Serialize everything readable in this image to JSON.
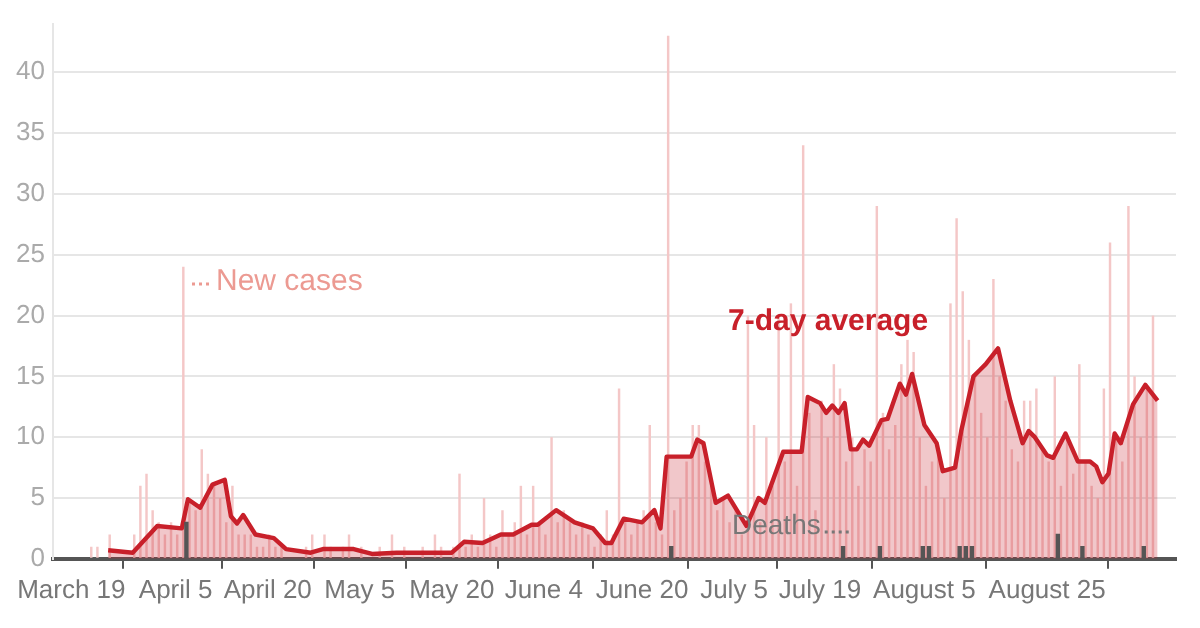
{
  "chart_data": {
    "type": "bar",
    "x": [
      "--03-22",
      "--03-23",
      "--03-24",
      "--03-25",
      "--03-26",
      "--03-27",
      "--03-28",
      "--03-29",
      "--03-30",
      "--03-31",
      "--04-01",
      "--04-02",
      "--04-03",
      "--04-04",
      "--04-05",
      "--04-06",
      "--04-07",
      "--04-08",
      "--04-09",
      "--04-10",
      "--04-11",
      "--04-12",
      "--04-13",
      "--04-14",
      "--04-15",
      "--04-16",
      "--04-17",
      "--04-18",
      "--04-19",
      "--04-20",
      "--04-21",
      "--04-22",
      "--04-23",
      "--04-24",
      "--04-25",
      "--04-26",
      "--04-27",
      "--04-28",
      "--04-29",
      "--04-30",
      "--05-01",
      "--05-02",
      "--05-03",
      "--05-04",
      "--05-05",
      "--05-06",
      "--05-07",
      "--05-08",
      "--05-09",
      "--05-10",
      "--05-11",
      "--05-12",
      "--05-13",
      "--05-14",
      "--05-15",
      "--05-16",
      "--05-17",
      "--05-18",
      "--05-19",
      "--05-20",
      "--05-21",
      "--05-22",
      "--05-23",
      "--05-24",
      "--05-25",
      "--05-26",
      "--05-27",
      "--05-28",
      "--05-29",
      "--05-30",
      "--05-31",
      "--06-01",
      "--06-02",
      "--06-03",
      "--06-04",
      "--06-05",
      "--06-06",
      "--06-07",
      "--06-08",
      "--06-09",
      "--06-10",
      "--06-11",
      "--06-12",
      "--06-13",
      "--06-14",
      "--06-15",
      "--06-16",
      "--06-17",
      "--06-18",
      "--06-19",
      "--06-20",
      "--06-21",
      "--06-22",
      "--06-23",
      "--06-24",
      "--06-25",
      "--06-26",
      "--06-27",
      "--06-28",
      "--06-29",
      "--06-30",
      "--07-01",
      "--07-02",
      "--07-03",
      "--07-04",
      "--07-05",
      "--07-06",
      "--07-07",
      "--07-08",
      "--07-09",
      "--07-10",
      "--07-11",
      "--07-12",
      "--07-13",
      "--07-14",
      "--07-15",
      "--07-16",
      "--07-17",
      "--07-18",
      "--07-19",
      "--07-20",
      "--07-21",
      "--07-22",
      "--07-23",
      "--07-24",
      "--07-25",
      "--07-26",
      "--07-27",
      "--07-28",
      "--07-29",
      "--07-30",
      "--07-31",
      "--08-01",
      "--08-02",
      "--08-03",
      "--08-04",
      "--08-05",
      "--08-06",
      "--08-07",
      "--08-08",
      "--08-09",
      "--08-10",
      "--08-11",
      "--08-12",
      "--08-13",
      "--08-14",
      "--08-15",
      "--08-16",
      "--08-17",
      "--08-18",
      "--08-19",
      "--08-20",
      "--08-21",
      "--08-22",
      "--08-23",
      "--08-24",
      "--08-25",
      "--08-26",
      "--08-27",
      "--08-28",
      "--08-29",
      "--08-30",
      "--08-31",
      "--09-01",
      "--09-02",
      "--09-03",
      "--09-04",
      "--09-05",
      "--09-06",
      "--09-07",
      "--09-08",
      "--09-09",
      "--09-10",
      "--09-11"
    ],
    "series": [
      {
        "name": "New cases",
        "color": "#f4c7c7",
        "values": [
          1,
          1,
          0,
          2,
          0,
          0,
          null,
          2,
          6,
          7,
          4,
          3,
          2,
          3,
          2,
          24,
          5,
          4,
          9,
          7,
          6,
          5,
          3,
          6,
          2,
          2,
          2,
          1,
          1,
          2,
          1,
          1,
          0,
          null,
          0,
          1,
          2,
          0,
          2,
          1,
          0,
          1,
          2,
          0,
          1,
          0,
          0,
          1,
          0,
          2,
          0,
          1,
          0,
          0,
          1,
          0,
          2,
          1,
          0,
          1,
          7,
          1,
          2,
          1,
          5,
          2,
          1,
          4,
          2,
          3,
          6,
          2,
          6,
          3,
          2,
          10,
          3,
          4,
          3,
          2,
          3,
          2,
          1,
          2,
          4,
          2,
          14,
          3,
          2,
          3,
          4,
          11,
          3,
          2,
          43,
          4,
          5,
          8,
          11,
          11,
          8,
          6,
          4,
          5,
          3,
          4,
          2,
          20,
          11,
          3,
          10,
          6,
          20,
          8,
          21,
          6,
          34,
          12,
          4,
          13,
          10,
          16,
          14,
          8,
          10,
          6,
          9,
          8,
          29,
          12,
          9,
          11,
          16,
          18,
          17,
          10,
          6,
          8,
          9,
          5,
          21,
          28,
          22,
          18,
          15,
          12,
          10,
          23,
          15,
          13,
          9,
          8,
          13,
          13,
          14,
          9,
          8,
          15,
          6,
          10,
          7,
          16,
          8,
          6,
          5,
          14,
          26,
          10,
          8,
          29,
          15,
          10,
          14,
          20
        ]
      },
      {
        "name": "7-day average",
        "type": "area",
        "color": "#c8202a",
        "x": [
          "--03-25",
          "--03-29",
          "--04-02",
          "--04-06",
          "--04-07",
          "--04-09",
          "--04-11",
          "--04-13",
          "--04-14",
          "--04-15",
          "--04-16",
          "--04-18",
          "--04-21",
          "--04-23",
          "--04-27",
          "--04-29",
          "--05-04",
          "--05-07",
          "--05-11",
          "--05-20",
          "--05-22",
          "--05-25",
          "--05-28",
          "--05-30",
          "--06-02",
          "--06-03",
          "--06-06",
          "--06-09",
          "--06-12",
          "--06-14",
          "--06-15",
          "--06-17",
          "--06-20",
          "--06-22",
          "--06-23",
          "--06-24",
          "--06-28",
          "--06-29",
          "--06-30",
          "--07-02",
          "--07-04",
          "--07-07",
          "--07-09",
          "--07-10",
          "--07-13",
          "--07-16",
          "--07-17",
          "--07-19",
          "--07-20",
          "--07-21",
          "--07-22",
          "--07-23",
          "--07-24",
          "--07-25",
          "--07-26",
          "--07-27",
          "--07-29",
          "--07-30",
          "--08-01",
          "--08-02",
          "--08-03",
          "--08-05",
          "--08-07",
          "--08-08",
          "--08-10",
          "--08-11",
          "--08-13",
          "--08-14",
          "--08-15",
          "--08-17",
          "--08-19",
          "--08-21",
          "--08-22",
          "--08-23",
          "--08-25",
          "--08-26",
          "--08-28",
          "--08-30",
          "--09-01",
          "--09-02",
          "--09-03",
          "--09-04",
          "--09-05",
          "--09-06",
          "--09-08",
          "--09-10",
          "--09-12"
        ],
        "values": [
          0.7,
          0.5,
          2.7,
          2.5,
          4.9,
          4.2,
          6.1,
          6.5,
          3.5,
          2.9,
          3.6,
          2,
          1.7,
          0.8,
          0.5,
          0.8,
          0.8,
          0.4,
          0.5,
          0.5,
          1.4,
          1.3,
          2,
          2,
          2.8,
          2.8,
          4,
          3,
          2.5,
          1.3,
          1.3,
          3.3,
          3,
          4,
          2.5,
          8.4,
          8.4,
          9.8,
          9.5,
          4.6,
          5.2,
          2.7,
          5,
          4.6,
          8.8,
          8.8,
          13.3,
          12.8,
          12,
          12.6,
          12,
          12.8,
          9,
          9,
          9.8,
          9.3,
          11.4,
          11.5,
          14.4,
          13.5,
          15.2,
          11,
          9.5,
          7.2,
          7.5,
          10.5,
          15,
          15.5,
          16,
          17.3,
          13,
          9.5,
          10.5,
          10,
          8.5,
          8.3,
          10.3,
          8,
          8,
          7.6,
          6.3,
          7,
          10.3,
          9.5,
          12.7,
          14.3,
          13
        ]
      },
      {
        "name": "Deaths",
        "color": "#555555",
        "x": [
          "--04-07",
          "--06-25",
          "--07-23",
          "--07-29",
          "--08-05",
          "--08-06",
          "--08-11",
          "--08-12",
          "--08-13",
          "--08-27",
          "--08-31",
          "--09-10"
        ],
        "values": [
          3,
          1,
          1,
          1,
          1,
          1,
          1,
          1,
          1,
          2,
          1,
          1
        ]
      }
    ],
    "xlim": [
      "--03-16",
      "--09-15"
    ],
    "xticks": [
      {
        "value": "--03-19",
        "label": "March 19"
      },
      {
        "value": "--04-05",
        "label": "April 5"
      },
      {
        "value": "--04-20",
        "label": "April 20"
      },
      {
        "value": "--05-05",
        "label": "May 5"
      },
      {
        "value": "--05-20",
        "label": "May 20"
      },
      {
        "value": "--06-04",
        "label": "June 4"
      },
      {
        "value": "--06-20",
        "label": "June 20"
      },
      {
        "value": "--07-05",
        "label": "July 5"
      },
      {
        "value": "--07-19",
        "label": "July 19"
      },
      {
        "value": "--08-05",
        "label": "August 5"
      },
      {
        "value": "--08-25",
        "label": "August 25"
      }
    ],
    "ylim": [
      0,
      44
    ],
    "yticks": [
      0,
      5,
      10,
      15,
      20,
      25,
      30,
      35,
      40
    ],
    "grid": "y"
  }
}
